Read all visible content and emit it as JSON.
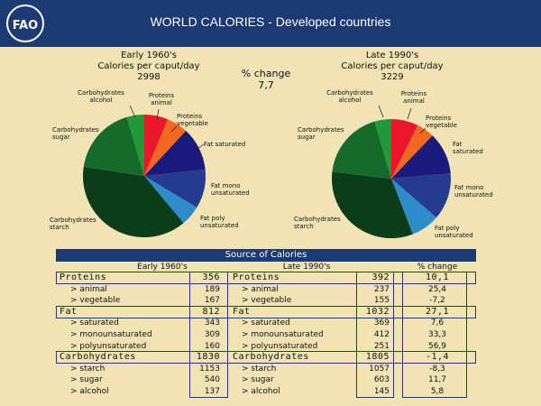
{
  "header": {
    "title": "WORLD CALORIES - Developed countries",
    "logo_text": "FAO"
  },
  "colors": {
    "header_bg": "#1c3a73",
    "background": "#f1e3b4",
    "proteins_animal": "#e8182a",
    "proteins_vegetable": "#f26722",
    "fat_saturated": "#1b1a7d",
    "fat_mono": "#253b8e",
    "fat_poly": "#2e8ccb",
    "carb_starch": "#0b3d1a",
    "carb_sugar": "#176b2a",
    "carb_alcohol": "#1e9a3b"
  },
  "change": {
    "label": "% change",
    "value": "7,7"
  },
  "chart_data": [
    {
      "type": "pie",
      "title": "Early 1960's",
      "subtitle": "Calories per caput/day",
      "total": "2998",
      "slices": [
        {
          "label": "Proteins animal",
          "value": 189
        },
        {
          "label": "Proteins vegetable",
          "value": 167
        },
        {
          "label": "Fat saturated",
          "value": 343
        },
        {
          "label": "Fat mono unsaturated",
          "value": 309
        },
        {
          "label": "Fat poly unsaturated",
          "value": 160
        },
        {
          "label": "Carbohydrates starch",
          "value": 1153
        },
        {
          "label": "Carbohydrates sugar",
          "value": 540
        },
        {
          "label": "Carbohydrates alcohol",
          "value": 137
        }
      ]
    },
    {
      "type": "pie",
      "title": "Late 1990's",
      "subtitle": "Calories per caput/day",
      "total": "3229",
      "slices": [
        {
          "label": "Proteins animal",
          "value": 237
        },
        {
          "label": "Proteins vegetable",
          "value": 155
        },
        {
          "label": "Fat saturated",
          "value": 369
        },
        {
          "label": "Fat mono unsaturated",
          "value": 412
        },
        {
          "label": "Fat poly unsaturated",
          "value": 251
        },
        {
          "label": "Carbohydrates starch",
          "value": 1057
        },
        {
          "label": "Carbohydrates sugar",
          "value": 603
        },
        {
          "label": "Carbohydrates alcohol",
          "value": 145
        }
      ]
    },
    {
      "type": "table",
      "title": "Source of Calories",
      "headers": [
        "Early 1960's",
        "Late 1990's",
        "% change"
      ],
      "rows": [
        {
          "group": true,
          "label": "Proteins",
          "early": "356",
          "label2": "Proteins",
          "late": "392",
          "change": "10,1"
        },
        {
          "group": false,
          "label": "> animal",
          "early": "189",
          "label2": "> animal",
          "late": "237",
          "change": "25,4"
        },
        {
          "group": false,
          "label": "> vegetable",
          "early": "167",
          "label2": "> vegetable",
          "late": "155",
          "change": "-7,2"
        },
        {
          "group": true,
          "label": "Fat",
          "early": "812",
          "label2": "Fat",
          "late": "1032",
          "change": "27,1"
        },
        {
          "group": false,
          "label": "> saturated",
          "early": "343",
          "label2": "> saturated",
          "late": "369",
          "change": "7,6"
        },
        {
          "group": false,
          "label": "> monounsaturated",
          "early": "309",
          "label2": "> monounsaturated",
          "late": "412",
          "change": "33,3"
        },
        {
          "group": false,
          "label": "> polyunsaturated",
          "early": "160",
          "label2": "> polyunsaturated",
          "late": "251",
          "change": "56,9"
        },
        {
          "group": true,
          "label": "Carbohydrates",
          "early": "1830",
          "label2": "Carbohydrates",
          "late": "1805",
          "change": "-1,4"
        },
        {
          "group": false,
          "label": "> starch",
          "early": "1153",
          "label2": "> starch",
          "late": "1057",
          "change": "-8,3"
        },
        {
          "group": false,
          "label": "> sugar",
          "early": "540",
          "label2": "> sugar",
          "late": "603",
          "change": "11,7"
        },
        {
          "group": false,
          "label": "> alcohol",
          "early": "137",
          "label2": "> alcohol",
          "late": "145",
          "change": "5,8"
        }
      ]
    }
  ]
}
